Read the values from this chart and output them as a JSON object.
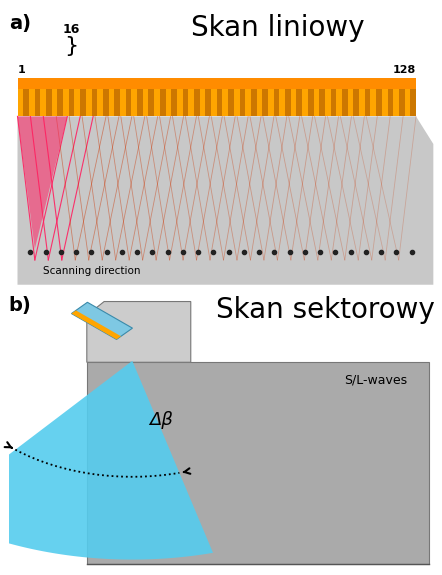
{
  "fig_width": 4.42,
  "fig_height": 5.75,
  "bg_color": "#ffffff",
  "panel_a": {
    "label": "a)",
    "title": "Skan liniowy",
    "title_fontsize": 20,
    "label_fontsize": 14,
    "body_color": "#c8c8c8",
    "ray_color": "#cc3300",
    "highlight_color": "#ff2060",
    "dot_color": "#222222",
    "scanning_text": "Scanning direction",
    "label_1": "1",
    "label_128": "128",
    "label_16": "16",
    "arr_stripe_orange": "#FFA500",
    "arr_stripe_dark": "#cc7700",
    "arr_top_orange": "#FF8C00"
  },
  "panel_b": {
    "label": "b)",
    "title": "Skan sektorowy",
    "title_fontsize": 20,
    "label_fontsize": 14,
    "block_color": "#aaaaaa",
    "wedge_color": "#cccccc",
    "transducer_blue": "#7ec8e3",
    "transducer_orange": "#FFA500",
    "scan_color": "#55ccee",
    "sl_text": "S/L-waves",
    "delta_beta": "Δβ",
    "arrow_color": "#111111"
  }
}
